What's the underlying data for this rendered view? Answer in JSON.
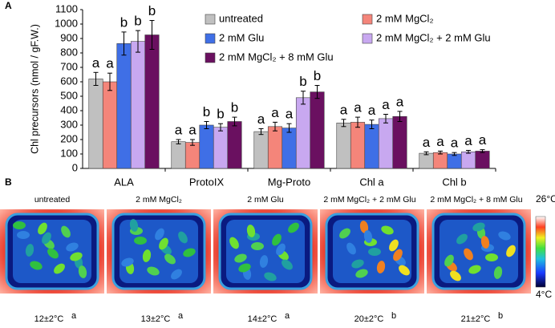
{
  "panel_labels": [
    "A",
    "B"
  ],
  "chart_data": {
    "type": "bar",
    "y_label": "Chl precursors (nmol / gF.W.)",
    "categories": [
      "ALA",
      "ProtoIX",
      "Mg-Proto",
      "Chl a",
      "Chl b"
    ],
    "ylim": [
      0,
      1100
    ],
    "yticks": [
      0,
      100,
      200,
      300,
      400,
      500,
      600,
      700,
      800,
      900,
      1000,
      1100
    ],
    "series": [
      {
        "name": "untreated",
        "color": "#c0c0c0",
        "values": [
          620,
          185,
          255,
          315,
          105
        ],
        "errors": [
          45,
          15,
          20,
          25,
          10
        ],
        "letters": [
          "a",
          "a",
          "a",
          "a",
          "a"
        ]
      },
      {
        "name": "2 mM MgCl₂",
        "color": "#f4857a",
        "values": [
          600,
          180,
          290,
          320,
          110
        ],
        "errors": [
          60,
          20,
          30,
          35,
          10
        ],
        "letters": [
          "a",
          "a",
          "a",
          "a",
          "a"
        ]
      },
      {
        "name": "2 mM Glu",
        "color": "#3f6fe6",
        "values": [
          865,
          300,
          280,
          305,
          100
        ],
        "errors": [
          80,
          25,
          30,
          30,
          10
        ],
        "letters": [
          "b",
          "b",
          "a",
          "a",
          "a"
        ]
      },
      {
        "name": "2 mM MgCl₂ + 2 mM Glu",
        "color": "#c8a8f0",
        "values": [
          880,
          285,
          490,
          345,
          115
        ],
        "errors": [
          75,
          25,
          45,
          30,
          10
        ],
        "letters": [
          "b",
          "b",
          "b",
          "a",
          "a"
        ]
      },
      {
        "name": "2 mM MgCl₂ + 8 mM Glu",
        "color": "#6a1060",
        "values": [
          925,
          325,
          530,
          360,
          120
        ],
        "errors": [
          100,
          30,
          45,
          35,
          10
        ],
        "letters": [
          "b",
          "b",
          "b",
          "a",
          "a"
        ]
      }
    ]
  },
  "panel_b": {
    "images": [
      {
        "treatment": "untreated",
        "temperature": "12±2°C",
        "letter": "a"
      },
      {
        "treatment": "2 mM MgCl₂",
        "temperature": "13±2°C",
        "letter": "a"
      },
      {
        "treatment": "2 mM Glu",
        "temperature": "14±2°C",
        "letter": "a"
      },
      {
        "treatment": "2 mM MgCl₂ + 2 mM Glu",
        "temperature": "20±2°C",
        "letter": "b"
      },
      {
        "treatment": "2 mM MgCl₂ + 8 mM Glu",
        "temperature": "21±2°C",
        "letter": "b"
      }
    ],
    "scale": {
      "max": "26°C",
      "min": "4°C"
    }
  }
}
